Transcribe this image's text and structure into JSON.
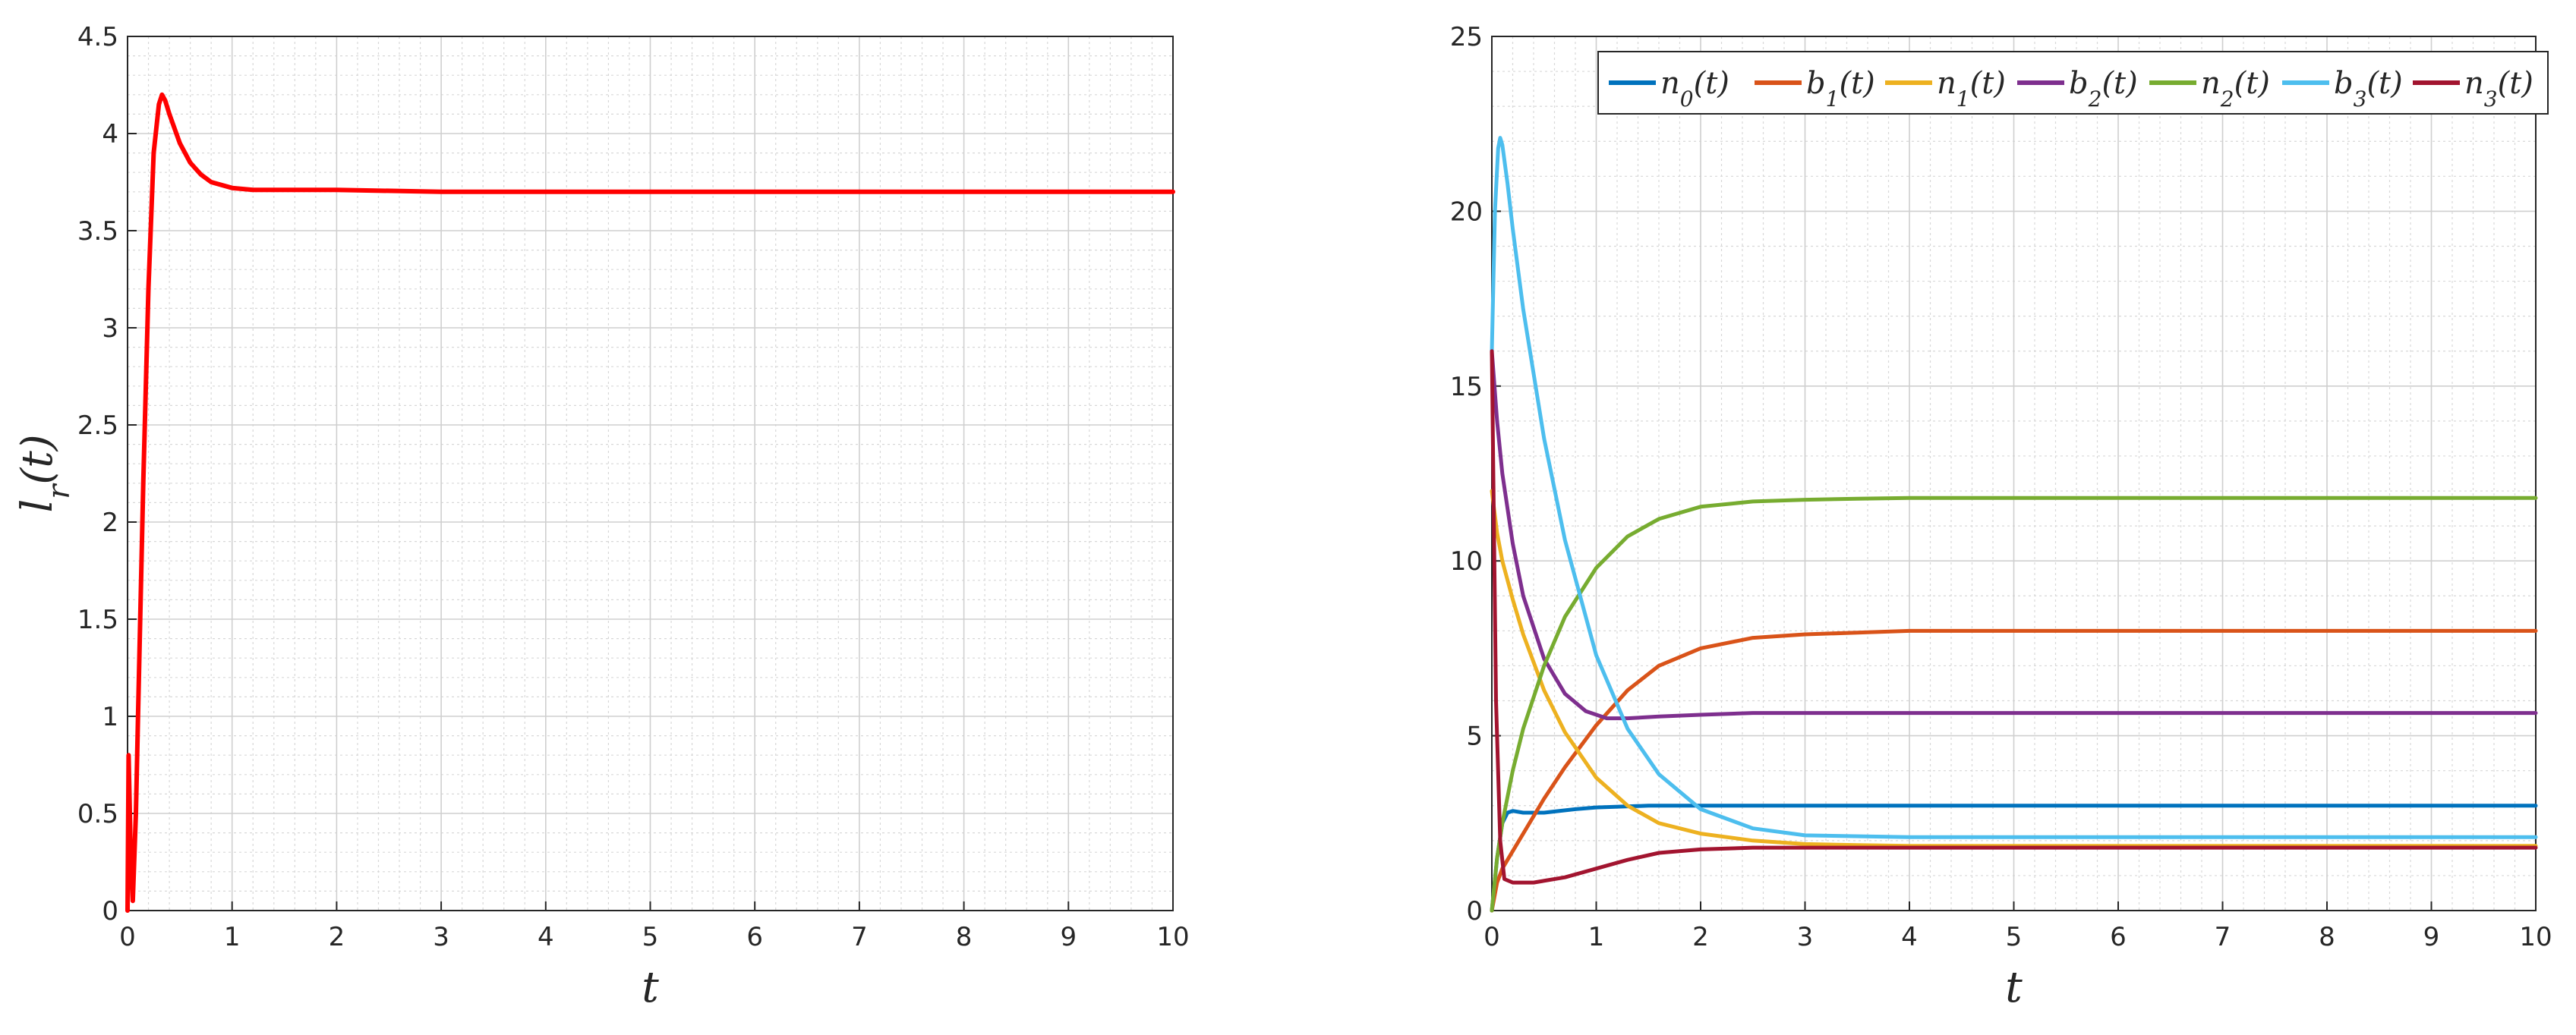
{
  "chart_data": [
    {
      "type": "line",
      "ylabel": "l_r(t)",
      "xlabel": "t",
      "xlim": [
        0,
        10
      ],
      "ylim": [
        0,
        4.5
      ],
      "xticks": [
        0,
        1,
        2,
        3,
        4,
        5,
        6,
        7,
        8,
        9,
        10
      ],
      "yticks": [
        0,
        0.5,
        1,
        1.5,
        2,
        2.5,
        3,
        3.5,
        4,
        4.5
      ],
      "grid": true,
      "minor_grid": true,
      "series": [
        {
          "color": "#ff0000",
          "x": [
            0,
            0.01,
            0.03,
            0.05,
            0.08,
            0.1,
            0.15,
            0.2,
            0.25,
            0.3,
            0.33,
            0.36,
            0.4,
            0.5,
            0.6,
            0.7,
            0.8,
            1.0,
            1.2,
            1.5,
            2,
            3,
            4,
            5,
            6,
            7,
            8,
            9,
            10
          ],
          "y": [
            0,
            0.8,
            0.3,
            0.05,
            0.5,
            1.0,
            2.2,
            3.2,
            3.9,
            4.15,
            4.2,
            4.17,
            4.1,
            3.95,
            3.85,
            3.79,
            3.75,
            3.72,
            3.71,
            3.71,
            3.71,
            3.7,
            3.7,
            3.7,
            3.7,
            3.7,
            3.7,
            3.7,
            3.7
          ]
        }
      ]
    },
    {
      "type": "line",
      "xlabel": "t",
      "ylabel": "",
      "xlim": [
        0,
        10
      ],
      "ylim": [
        0,
        25
      ],
      "xticks": [
        0,
        1,
        2,
        3,
        4,
        5,
        6,
        7,
        8,
        9,
        10
      ],
      "yticks": [
        0,
        5,
        10,
        15,
        20,
        25
      ],
      "grid": true,
      "minor_grid": true,
      "legend": "top-right",
      "series": [
        {
          "name": "n_0(t)",
          "color": "#0072bd",
          "x": [
            0,
            0.05,
            0.1,
            0.15,
            0.2,
            0.3,
            0.5,
            0.8,
            1.0,
            1.5,
            2,
            3,
            4,
            5,
            6,
            7,
            8,
            9,
            10
          ],
          "y": [
            0,
            1.5,
            2.5,
            2.8,
            2.85,
            2.8,
            2.8,
            2.9,
            2.95,
            3.0,
            3.0,
            3.0,
            3.0,
            3.0,
            3.0,
            3.0,
            3.0,
            3.0,
            3.0
          ]
        },
        {
          "name": "b_1(t)",
          "color": "#d95319",
          "x": [
            0,
            0.05,
            0.1,
            0.2,
            0.3,
            0.5,
            0.7,
            1.0,
            1.3,
            1.6,
            2.0,
            2.5,
            3.0,
            3.5,
            4,
            5,
            6,
            7,
            8,
            9,
            10
          ],
          "y": [
            0,
            0.8,
            1.2,
            1.7,
            2.2,
            3.2,
            4.1,
            5.3,
            6.3,
            7.0,
            7.5,
            7.8,
            7.9,
            7.95,
            8.0,
            8.0,
            8.0,
            8.0,
            8.0,
            8.0,
            8.0
          ]
        },
        {
          "name": "n_1(t)",
          "color": "#edb120",
          "x": [
            0,
            0.05,
            0.1,
            0.2,
            0.3,
            0.5,
            0.7,
            1.0,
            1.3,
            1.6,
            2.0,
            2.5,
            3.0,
            3.5,
            4,
            5,
            6,
            7,
            8,
            9,
            10
          ],
          "y": [
            12,
            10.8,
            10.0,
            8.9,
            7.9,
            6.3,
            5.1,
            3.8,
            3.0,
            2.5,
            2.2,
            2.0,
            1.9,
            1.87,
            1.85,
            1.85,
            1.85,
            1.85,
            1.85,
            1.85,
            1.85
          ]
        },
        {
          "name": "b_2(t)",
          "color": "#7e2f8e",
          "x": [
            0,
            0.05,
            0.1,
            0.2,
            0.3,
            0.5,
            0.7,
            0.9,
            1.1,
            1.3,
            1.6,
            2.0,
            2.5,
            3.0,
            4,
            5,
            6,
            7,
            8,
            9,
            10
          ],
          "y": [
            16,
            14.0,
            12.5,
            10.5,
            9.0,
            7.2,
            6.2,
            5.7,
            5.5,
            5.5,
            5.55,
            5.6,
            5.65,
            5.65,
            5.65,
            5.65,
            5.65,
            5.65,
            5.65,
            5.65,
            5.65
          ]
        },
        {
          "name": "n_2(t)",
          "color": "#77ac30",
          "x": [
            0,
            0.05,
            0.1,
            0.2,
            0.3,
            0.5,
            0.7,
            1.0,
            1.3,
            1.6,
            2.0,
            2.5,
            3.0,
            3.5,
            4,
            5,
            6,
            7,
            8,
            9,
            10
          ],
          "y": [
            0,
            1.5,
            2.5,
            4.0,
            5.2,
            7.0,
            8.4,
            9.8,
            10.7,
            11.2,
            11.55,
            11.7,
            11.75,
            11.78,
            11.8,
            11.8,
            11.8,
            11.8,
            11.8,
            11.8,
            11.8
          ]
        },
        {
          "name": "b_3(t)",
          "color": "#4dbeee",
          "x": [
            0,
            0.03,
            0.06,
            0.08,
            0.1,
            0.15,
            0.2,
            0.3,
            0.5,
            0.7,
            1.0,
            1.3,
            1.6,
            2.0,
            2.5,
            3.0,
            4,
            5,
            6,
            7,
            8,
            9,
            10
          ],
          "y": [
            16,
            20.0,
            21.8,
            22.1,
            21.9,
            20.8,
            19.5,
            17.2,
            13.5,
            10.6,
            7.3,
            5.2,
            3.9,
            2.9,
            2.35,
            2.15,
            2.1,
            2.1,
            2.1,
            2.1,
            2.1,
            2.1,
            2.1
          ]
        },
        {
          "name": "n_3(t)",
          "color": "#a2142f",
          "x": [
            0,
            0.04,
            0.08,
            0.12,
            0.2,
            0.4,
            0.7,
            1.0,
            1.3,
            1.6,
            2.0,
            2.5,
            3.0,
            4,
            5,
            6,
            7,
            8,
            9,
            10
          ],
          "y": [
            16,
            6.0,
            2.0,
            0.9,
            0.8,
            0.8,
            0.95,
            1.2,
            1.45,
            1.65,
            1.75,
            1.8,
            1.8,
            1.8,
            1.8,
            1.8,
            1.8,
            1.8,
            1.8,
            1.8
          ]
        }
      ]
    }
  ]
}
